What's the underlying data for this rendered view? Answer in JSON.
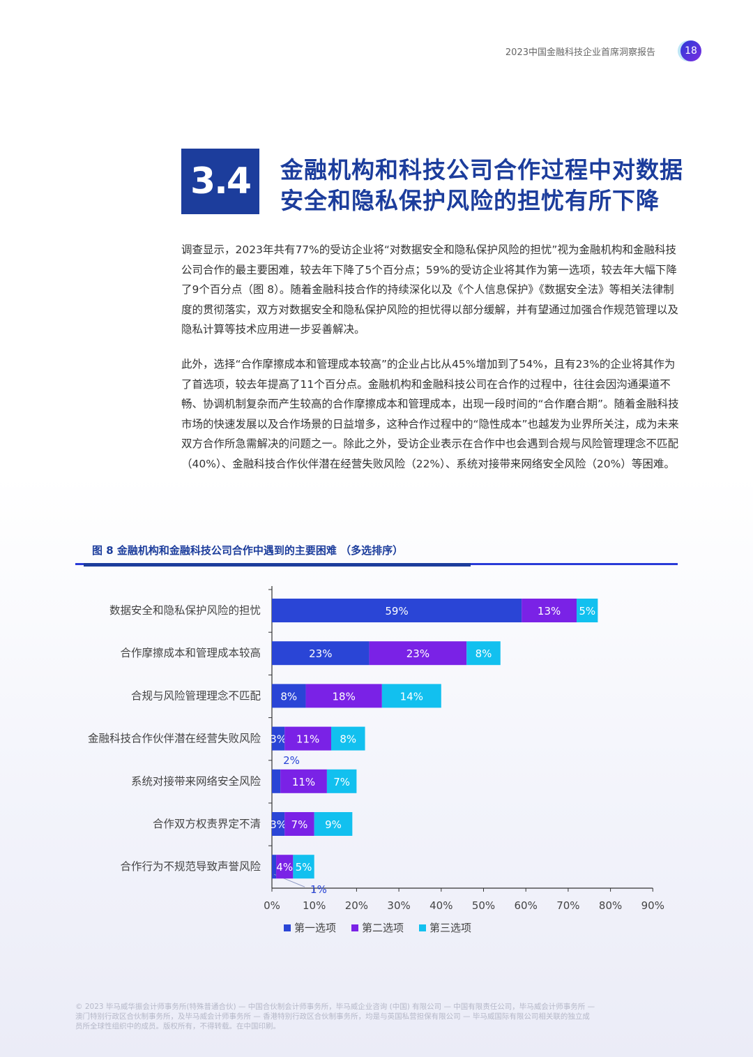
{
  "header": {
    "title": "2023中国金融科技企业首席洞察报告",
    "page_number": "18"
  },
  "section": {
    "number": "3.4",
    "title_line1": "金融机构和科技公司合作过程中对数据",
    "title_line2": "安全和隐私保护风险的担忧有所下降"
  },
  "paragraphs": {
    "p1": "调查显示，2023年共有77%的受访企业将“对数据安全和隐私保护风险的担忧”视为金融机构和金融科技公司合作的最主要困难，较去年下降了5个百分点；59%的受访企业将其作为第一选项，较去年大幅下降了9个百分点（图 8）。随着金融科技合作的持续深化以及《个人信息保护》《数据安全法》等相关法律制度的贯彻落实，双方对数据安全和隐私保护风险的担忧得以部分缓解，并有望通过加强合作规范管理以及隐私计算等技术应用进一步妥善解决。",
    "p2": "此外，选择“合作摩擦成本和管理成本较高”的企业占比从45%增加到了54%，且有23%的企业将其作为了首选项，较去年提高了11个百分点。金融机构和金融科技公司在合作的过程中，往往会因沟通渠道不畅、协调机制复杂而产生较高的合作摩擦成本和管理成本，出现一段时间的“合作磨合期”。随着金融科技市场的快速发展以及合作场景的日益增多，这种合作过程中的“隐性成本”也越发为业界所关注，成为未来双方合作所急需解决的问题之一。除此之外，受访企业表示在合作中也会遇到合规与风险管理理念不匹配（40%）、金融科技合作伙伴潜在经营失败风险（22%）、系统对接带来网络安全风险（20%）等困难。"
  },
  "figure": {
    "title": "图 8 金融机构和金融科技公司合作中遇到的主要困难 （多选排序）"
  },
  "chart_data": {
    "type": "bar",
    "orientation": "horizontal",
    "stacked": true,
    "categories": [
      "数据安全和隐私保护风险的担忧",
      "合作摩擦成本和管理成本较高",
      "合规与风险管理理念不匹配",
      "金融科技合作伙伴潜在经营失败风险",
      "系统对接带来网络安全风险",
      "合作双方权责界定不清",
      "合作行为不规范导致声誉风险"
    ],
    "series": [
      {
        "name": "第一选项",
        "color": "#2a45d6",
        "values": [
          59,
          23,
          8,
          3,
          2,
          3,
          1
        ]
      },
      {
        "name": "第二选项",
        "color": "#7a22e6",
        "values": [
          13,
          23,
          18,
          11,
          11,
          7,
          4
        ]
      },
      {
        "name": "第三选项",
        "color": "#12c0ef",
        "values": [
          5,
          8,
          14,
          8,
          7,
          9,
          5
        ]
      }
    ],
    "labels": [
      [
        "59%",
        "13%",
        "5%"
      ],
      [
        "23%",
        "23%",
        "8%"
      ],
      [
        "8%",
        "18%",
        "14%"
      ],
      [
        "3%",
        "11%",
        "8%"
      ],
      [
        "2%",
        "11%",
        "7%"
      ],
      [
        "3%",
        "7%",
        "9%"
      ],
      [
        "1%",
        "4%",
        "5%"
      ]
    ],
    "xlim": [
      0,
      90
    ],
    "xticks": [
      "0%",
      "10%",
      "20%",
      "30%",
      "40%",
      "50%",
      "60%",
      "70%",
      "80%",
      "90%"
    ],
    "legend": "bottom",
    "grid": false
  },
  "footer": {
    "line1": "© 2023 毕马威华振会计师事务所(特殊普通合伙) — 中国合伙制会计师事务所，毕马威企业咨询 (中国) 有限公司 — 中国有限责任公司，毕马威会计师事务所 —",
    "line2": "澳门特别行政区合伙制事务所，及毕马威会计师事务所 — 香港特别行政区合伙制事务所，均是与英国私营担保有限公司 — 毕马威国际有限公司相关联的独立成",
    "line3": "员所全球性组织中的成员。版权所有，不得转载。在中国印刷。"
  }
}
